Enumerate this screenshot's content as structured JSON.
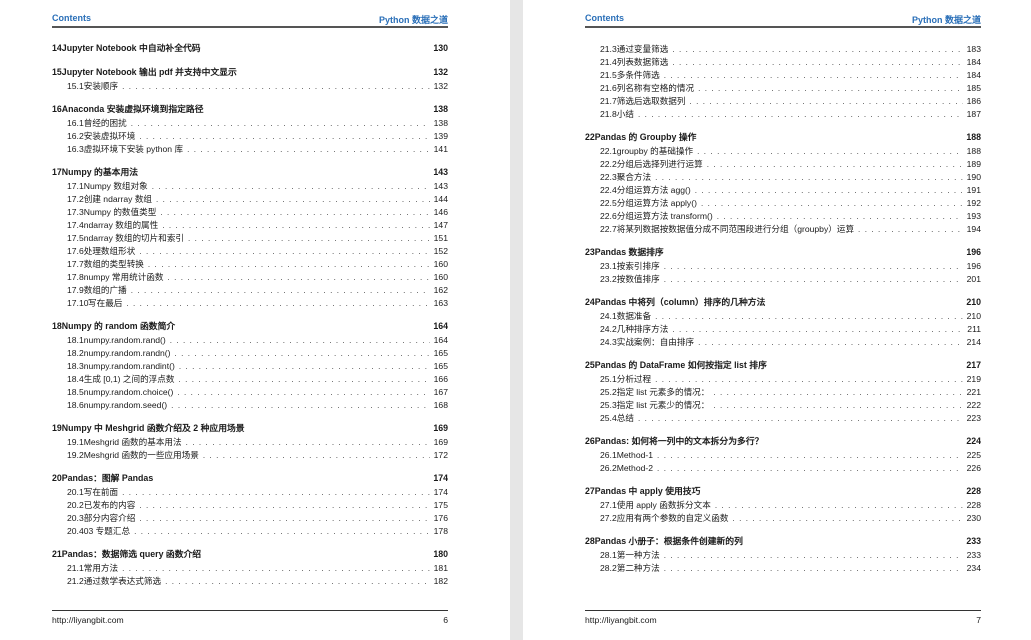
{
  "pages": [
    {
      "header": {
        "left": "Contents",
        "right": "Python 数据之道"
      },
      "footer": {
        "url": "http://liyangbit.com",
        "page_number": "6"
      },
      "entries": [
        {
          "type": "ch",
          "num": "14",
          "title": "Jupyter Notebook 中自动补全代码",
          "page": "130"
        },
        {
          "type": "ch",
          "num": "15",
          "title": "Jupyter Notebook 输出 pdf 并支持中文显示",
          "page": "132"
        },
        {
          "type": "sec",
          "num": "15.1",
          "title": "安装顺序",
          "page": "132"
        },
        {
          "type": "ch",
          "num": "16",
          "title": "Anaconda 安装虚拟环境到指定路径",
          "page": "138"
        },
        {
          "type": "sec",
          "num": "16.1",
          "title": "曾经的困扰",
          "page": "138"
        },
        {
          "type": "sec",
          "num": "16.2",
          "title": "安装虚拟环境",
          "page": "139"
        },
        {
          "type": "sec",
          "num": "16.3",
          "title": "虚拟环境下安装 python 库",
          "page": "141"
        },
        {
          "type": "ch",
          "num": "17",
          "title": "Numpy 的基本用法",
          "page": "143"
        },
        {
          "type": "sec",
          "num": "17.1",
          "title": "Numpy 数组对象",
          "page": "143"
        },
        {
          "type": "sec",
          "num": "17.2",
          "title": "创建 ndarray 数组",
          "page": "144"
        },
        {
          "type": "sec",
          "num": "17.3",
          "title": "Numpy 的数值类型",
          "page": "146"
        },
        {
          "type": "sec",
          "num": "17.4",
          "title": "ndarray 数组的属性",
          "page": "147"
        },
        {
          "type": "sec",
          "num": "17.5",
          "title": "ndarray 数组的切片和索引",
          "page": "151"
        },
        {
          "type": "sec",
          "num": "17.6",
          "title": "处理数组形状",
          "page": "152"
        },
        {
          "type": "sec",
          "num": "17.7",
          "title": "数组的类型转换",
          "page": "160"
        },
        {
          "type": "sec",
          "num": "17.8",
          "title": "numpy 常用统计函数",
          "page": "160"
        },
        {
          "type": "sec",
          "num": "17.9",
          "title": "数组的广播",
          "page": "162"
        },
        {
          "type": "sec",
          "num": "17.10",
          "title": "写在最后",
          "page": "163"
        },
        {
          "type": "ch",
          "num": "18",
          "title": "Numpy 的 random 函数简介",
          "page": "164"
        },
        {
          "type": "sec",
          "num": "18.1",
          "title": "numpy.random.rand()",
          "page": "164"
        },
        {
          "type": "sec",
          "num": "18.2",
          "title": "numpy.random.randn()",
          "page": "165"
        },
        {
          "type": "sec",
          "num": "18.3",
          "title": "numpy.random.randint()",
          "page": "165"
        },
        {
          "type": "sec",
          "num": "18.4",
          "title": "生成 [0,1) 之间的浮点数",
          "page": "166"
        },
        {
          "type": "sec",
          "num": "18.5",
          "title": "numpy.random.choice()",
          "page": "167"
        },
        {
          "type": "sec",
          "num": "18.6",
          "title": "numpy.random.seed()",
          "page": "168"
        },
        {
          "type": "ch",
          "num": "19",
          "title": "Numpy 中 Meshgrid 函数介绍及 2 种应用场景",
          "page": "169"
        },
        {
          "type": "sec",
          "num": "19.1",
          "title": "Meshgrid 函数的基本用法",
          "page": "169"
        },
        {
          "type": "sec",
          "num": "19.2",
          "title": "Meshgrid 函数的一些应用场景",
          "page": "172"
        },
        {
          "type": "ch",
          "num": "20",
          "title": "Pandas：图解 Pandas",
          "page": "174"
        },
        {
          "type": "sec",
          "num": "20.1",
          "title": "写在前面",
          "page": "174"
        },
        {
          "type": "sec",
          "num": "20.2",
          "title": "已发布的内容",
          "page": "175"
        },
        {
          "type": "sec",
          "num": "20.3",
          "title": "部分内容介绍",
          "page": "176"
        },
        {
          "type": "sec",
          "num": "20.4",
          "title": "03 专题汇总",
          "page": "178"
        },
        {
          "type": "ch",
          "num": "21",
          "title": "Pandas：数据筛选 query 函数介绍",
          "page": "180"
        },
        {
          "type": "sec",
          "num": "21.1",
          "title": "常用方法",
          "page": "181"
        },
        {
          "type": "sec",
          "num": "21.2",
          "title": "通过数学表达式筛选",
          "page": "182"
        }
      ]
    },
    {
      "header": {
        "left": "Contents",
        "right": "Python 数据之道"
      },
      "footer": {
        "url": "http://liyangbit.com",
        "page_number": "7"
      },
      "entries": [
        {
          "type": "sec",
          "num": "21.3",
          "title": "通过变量筛选",
          "page": "183"
        },
        {
          "type": "sec",
          "num": "21.4",
          "title": "列表数据筛选",
          "page": "184"
        },
        {
          "type": "sec",
          "num": "21.5",
          "title": "多条件筛选",
          "page": "184"
        },
        {
          "type": "sec",
          "num": "21.6",
          "title": "列名称有空格的情况",
          "page": "185"
        },
        {
          "type": "sec",
          "num": "21.7",
          "title": "筛选后选取数据列",
          "page": "186"
        },
        {
          "type": "sec",
          "num": "21.8",
          "title": "小结",
          "page": "187"
        },
        {
          "type": "ch",
          "num": "22",
          "title": "Pandas 的 Groupby 操作",
          "page": "188"
        },
        {
          "type": "sec",
          "num": "22.1",
          "title": "groupby 的基础操作",
          "page": "188"
        },
        {
          "type": "sec",
          "num": "22.2",
          "title": "分组后选择列进行运算",
          "page": "189"
        },
        {
          "type": "sec",
          "num": "22.3",
          "title": "聚合方法",
          "page": "190"
        },
        {
          "type": "sec",
          "num": "22.4",
          "title": "分组运算方法 agg()",
          "page": "191"
        },
        {
          "type": "sec",
          "num": "22.5",
          "title": "分组运算方法 apply()",
          "page": "192"
        },
        {
          "type": "sec",
          "num": "22.6",
          "title": "分组运算方法 transform()",
          "page": "193"
        },
        {
          "type": "sec",
          "num": "22.7",
          "title": "将某列数据按数据值分成不同范围段进行分组（groupby）运算",
          "page": "194"
        },
        {
          "type": "ch",
          "num": "23",
          "title": "Pandas 数据排序",
          "page": "196"
        },
        {
          "type": "sec",
          "num": "23.1",
          "title": "按索引排序",
          "page": "196"
        },
        {
          "type": "sec",
          "num": "23.2",
          "title": "按数值排序",
          "page": "201"
        },
        {
          "type": "ch",
          "num": "24",
          "title": "Pandas 中将列（column）排序的几种方法",
          "page": "210"
        },
        {
          "type": "sec",
          "num": "24.1",
          "title": "数据准备",
          "page": "210"
        },
        {
          "type": "sec",
          "num": "24.2",
          "title": "几种排序方法",
          "page": "211"
        },
        {
          "type": "sec",
          "num": "24.3",
          "title": "实战案例：自由排序",
          "page": "214"
        },
        {
          "type": "ch",
          "num": "25",
          "title": "Pandas 的 DataFrame 如何按指定 list 排序",
          "page": "217"
        },
        {
          "type": "sec",
          "num": "25.1",
          "title": "分析过程",
          "page": "219"
        },
        {
          "type": "sec",
          "num": "25.2",
          "title": "指定 list 元素多的情况：",
          "page": "221"
        },
        {
          "type": "sec",
          "num": "25.3",
          "title": "指定 list 元素少的情况：",
          "page": "222"
        },
        {
          "type": "sec",
          "num": "25.4",
          "title": "总结",
          "page": "223"
        },
        {
          "type": "ch",
          "num": "26",
          "title": "Pandas: 如何将一列中的文本拆分为多行？",
          "page": "224"
        },
        {
          "type": "sec",
          "num": "26.1",
          "title": "Method-1",
          "page": "225"
        },
        {
          "type": "sec",
          "num": "26.2",
          "title": "Method-2",
          "page": "226"
        },
        {
          "type": "ch",
          "num": "27",
          "title": "Pandas 中 apply 使用技巧",
          "page": "228"
        },
        {
          "type": "sec",
          "num": "27.1",
          "title": "使用 apply 函数拆分文本",
          "page": "228"
        },
        {
          "type": "sec",
          "num": "27.2",
          "title": "应用有两个参数的自定义函数",
          "page": "230"
        },
        {
          "type": "ch",
          "num": "28",
          "title": "Pandas 小册子：根据条件创建新的列",
          "page": "233"
        },
        {
          "type": "sec",
          "num": "28.1",
          "title": "第一种方法",
          "page": "233"
        },
        {
          "type": "sec",
          "num": "28.2",
          "title": "第二种方法",
          "page": "234"
        }
      ]
    }
  ],
  "colors": {
    "header_accent": "#2a6fb8",
    "viewer_background": "#e6e6e6"
  }
}
